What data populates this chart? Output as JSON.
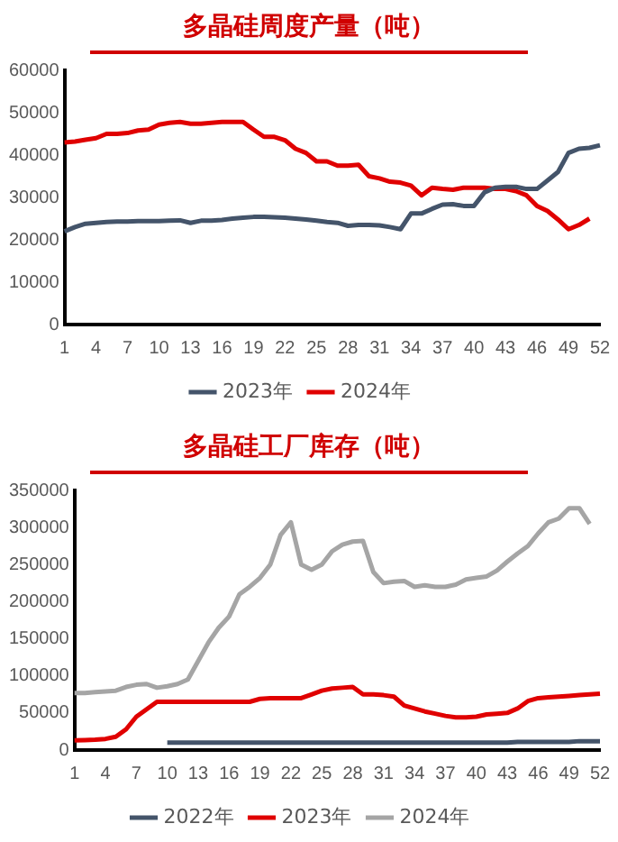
{
  "chart_data": [
    {
      "type": "line",
      "title": "多晶硅周度产量（吨）",
      "categories": [
        "1",
        null,
        null,
        "4",
        null,
        null,
        "7",
        null,
        null,
        "10",
        null,
        null,
        "13",
        null,
        null,
        "16",
        null,
        null,
        "19",
        null,
        null,
        "22",
        null,
        null,
        "25",
        null,
        null,
        "28",
        null,
        null,
        "31",
        null,
        null,
        "34",
        null,
        null,
        "37",
        null,
        null,
        "40",
        null,
        null,
        "43",
        null,
        null,
        "46",
        null,
        null,
        "49",
        null,
        null,
        "52"
      ],
      "series": [
        {
          "name": "2023年",
          "color": "#44546a",
          "values": [
            22000,
            23000,
            23800,
            24000,
            24200,
            24300,
            24300,
            24400,
            24400,
            24400,
            24500,
            24600,
            24000,
            24500,
            24500,
            24700,
            25000,
            25200,
            25400,
            25400,
            25300,
            25200,
            25000,
            24800,
            24500,
            24200,
            24000,
            23300,
            23500,
            23500,
            23400,
            23000,
            22500,
            26200,
            26200,
            27300,
            28300,
            28400,
            28000,
            28000,
            31200,
            32300,
            32500,
            32500,
            32000,
            32000,
            34000,
            36000,
            40500,
            41500,
            41700,
            42300
          ]
        },
        {
          "name": "2024年",
          "color": "#e00000",
          "values": [
            43000,
            43200,
            43600,
            44000,
            45000,
            45000,
            45200,
            45800,
            46000,
            47200,
            47600,
            47800,
            47400,
            47400,
            47600,
            47800,
            47800,
            47800,
            46000,
            44300,
            44300,
            43500,
            41500,
            40500,
            38500,
            38500,
            37500,
            37500,
            37700,
            35000,
            34500,
            33700,
            33500,
            32800,
            30500,
            32300,
            32000,
            31800,
            32300,
            32300,
            32300,
            32000,
            32000,
            31500,
            30500,
            28000,
            26800,
            24800,
            22500,
            23500,
            25000,
            null
          ]
        }
      ],
      "ylim": [
        0,
        60000
      ],
      "yticks": [
        0,
        10000,
        20000,
        30000,
        40000,
        50000,
        60000
      ],
      "grid": false,
      "legend": "bottom",
      "marker": "none"
    },
    {
      "type": "line",
      "title": "多晶硅工厂库存（吨）",
      "categories": [
        "1",
        null,
        null,
        "4",
        null,
        null,
        "7",
        null,
        null,
        "10",
        null,
        null,
        "13",
        null,
        null,
        "16",
        null,
        null,
        "19",
        null,
        null,
        "22",
        null,
        null,
        "25",
        null,
        null,
        "28",
        null,
        null,
        "31",
        null,
        null,
        "34",
        null,
        null,
        "37",
        null,
        null,
        "40",
        null,
        null,
        "43",
        null,
        null,
        "46",
        null,
        null,
        "49",
        null,
        null,
        "52"
      ],
      "series": [
        {
          "name": "2022年",
          "color": "#44546a",
          "values": [
            null,
            null,
            null,
            null,
            null,
            null,
            null,
            null,
            null,
            10000,
            10000,
            10000,
            10000,
            10000,
            10000,
            10000,
            10000,
            10000,
            10000,
            10000,
            10000,
            10000,
            10000,
            10000,
            10000,
            10000,
            10000,
            10000,
            10000,
            10000,
            10000,
            10000,
            10000,
            10000,
            10000,
            10000,
            10000,
            10000,
            10000,
            10000,
            10000,
            10000,
            10000,
            11000,
            11000,
            11000,
            11000,
            11000,
            11000,
            12000,
            12000,
            12000
          ]
        },
        {
          "name": "2023年",
          "color": "#e00000",
          "values": [
            13000,
            13500,
            14000,
            15000,
            18000,
            28000,
            45000,
            55000,
            65000,
            65000,
            65000,
            65000,
            65000,
            65000,
            65000,
            65000,
            65000,
            65000,
            69000,
            70000,
            70000,
            70000,
            70000,
            75000,
            80000,
            83000,
            84000,
            85000,
            75000,
            75000,
            74000,
            72000,
            60000,
            56000,
            52000,
            49000,
            46000,
            44000,
            44000,
            45000,
            48000,
            49000,
            50000,
            56000,
            66000,
            70000,
            71000,
            72000,
            73000,
            74000,
            75000,
            76000
          ]
        },
        {
          "name": "2024年",
          "color": "#a5a5a5",
          "values": [
            77000,
            77000,
            78000,
            79000,
            80000,
            85000,
            88000,
            89000,
            84000,
            86000,
            89000,
            95000,
            120000,
            145000,
            165000,
            180000,
            210000,
            220000,
            232000,
            250000,
            290000,
            307000,
            250000,
            243000,
            250000,
            268000,
            277000,
            281000,
            282000,
            240000,
            225000,
            227000,
            228000,
            220000,
            222000,
            220000,
            220000,
            223000,
            230000,
            232000,
            234000,
            242000,
            254000,
            265000,
            275000,
            292000,
            307000,
            312000,
            326000,
            326000,
            305000,
            null
          ]
        }
      ],
      "ylim": [
        0,
        350000
      ],
      "yticks": [
        0,
        50000,
        100000,
        150000,
        200000,
        250000,
        300000,
        350000
      ],
      "grid": false,
      "legend": "bottom",
      "marker": "none"
    }
  ]
}
